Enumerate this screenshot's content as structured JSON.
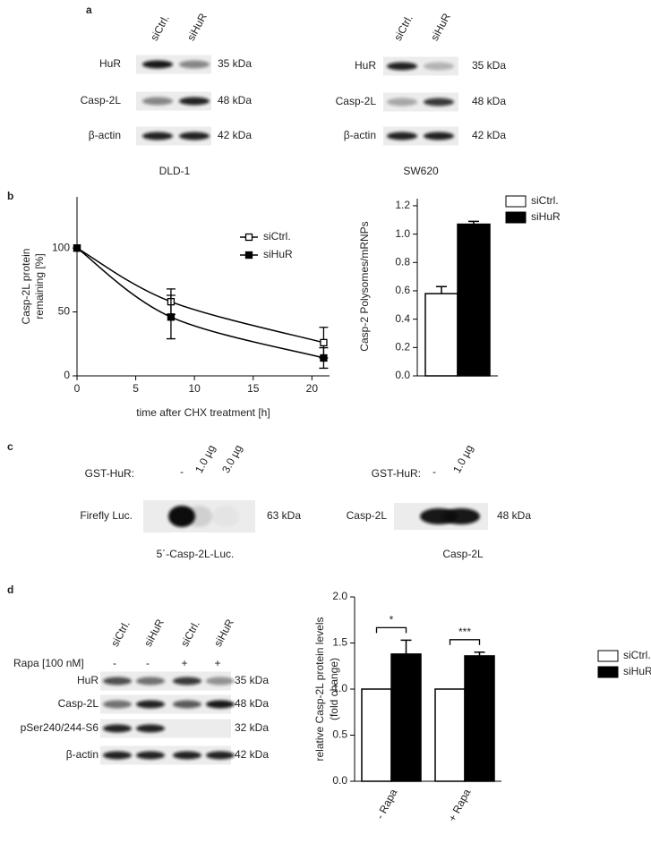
{
  "panel_a": {
    "label": "a",
    "blots": [
      {
        "lanes": [
          "siCtrl.",
          "siHuR"
        ],
        "rows": [
          {
            "protein": "HuR",
            "size": "35 kDa"
          },
          {
            "protein": "Casp-2L",
            "size": "48 kDa"
          },
          {
            "protein": "β-actin",
            "size": "42 kDa"
          }
        ],
        "cell_line": "DLD-1"
      },
      {
        "lanes": [
          "siCtrl.",
          "siHuR"
        ],
        "rows": [
          {
            "protein": "HuR",
            "size": "35 kDa"
          },
          {
            "protein": "Casp-2L",
            "size": "48 kDa"
          },
          {
            "protein": "β-actin",
            "size": "42 kDa"
          }
        ],
        "cell_line": "SW620"
      }
    ]
  },
  "panel_b": {
    "label": "b"
  },
  "panel_c": {
    "label": "c",
    "blots": [
      {
        "treatment": "GST-HuR:",
        "lanes": [
          "-",
          "1.0 µg",
          "3.0 µg"
        ],
        "rows": [
          {
            "protein": "Firefly Luc.",
            "size": "63 kDa"
          }
        ],
        "caption": "5´-Casp-2L-Luc."
      },
      {
        "treatment": "GST-HuR:",
        "lanes": [
          "-",
          "1.0 µg"
        ],
        "rows": [
          {
            "protein": "Casp-2L",
            "size": "48 kDa"
          }
        ],
        "caption": "Casp-2L"
      }
    ]
  },
  "panel_d": {
    "label": "d",
    "blot": {
      "lanes": [
        "siCtrl.",
        "siHuR",
        "siCtrl.",
        "siHuR"
      ],
      "treatment": "Rapa [100 nM]",
      "treatment_marks": [
        "-",
        "-",
        "+",
        "+"
      ],
      "rows": [
        {
          "protein": "HuR",
          "size": "35 kDa"
        },
        {
          "protein": "Casp-2L",
          "size": "48 kDa"
        },
        {
          "protein": "pSer240/244-S6",
          "size": "32 kDa"
        },
        {
          "protein": "β-actin",
          "size": "42 kDa"
        }
      ]
    }
  },
  "chart_data": [
    {
      "type": "line",
      "xlabel": "time after CHX treatment [h]",
      "ylabel": [
        "Casp-2L protein",
        "remaining [%]"
      ],
      "x": [
        0,
        8,
        21
      ],
      "xlim": [
        0,
        21.5
      ],
      "xticks": [
        0,
        5,
        10,
        15,
        20
      ],
      "ylim": [
        0,
        140
      ],
      "yticks": [
        0,
        50,
        100
      ],
      "series": [
        {
          "name": "siCtrl.",
          "color": "#000000",
          "marker": "square-open",
          "values": [
            100,
            58,
            26
          ],
          "errors": [
            null,
            10,
            12
          ]
        },
        {
          "name": "siHuR",
          "color": "#000000",
          "marker": "square",
          "values": [
            100,
            46,
            14
          ],
          "errors": [
            null,
            17,
            8
          ]
        }
      ]
    },
    {
      "type": "bar",
      "ylabel": [
        "Casp-2 Polysomes/mRNPs"
      ],
      "categories": [
        null
      ],
      "ylim": [
        0,
        1.25
      ],
      "yticks": [
        {
          "value": 0,
          "label": "0.0"
        },
        0.2,
        0.4,
        0.6,
        0.8,
        {
          "value": 1,
          "label": "1.0"
        },
        1.2
      ],
      "series": [
        {
          "name": "siCtrl.",
          "color": "#ffffff",
          "values": [
            0.58
          ],
          "errors": [
            0.05
          ]
        },
        {
          "name": "siHuR",
          "color": "#000000",
          "values": [
            1.07
          ],
          "errors": [
            0.02
          ]
        }
      ]
    },
    {
      "type": "bar",
      "ylabel": [
        "relative Casp-2L protein levels",
        "(fold change)"
      ],
      "categories": [
        "- Rapa",
        "+ Rapa"
      ],
      "ylim": [
        0,
        2
      ],
      "yticks": [
        {
          "value": 0,
          "label": "0.0"
        },
        0.5,
        {
          "value": 1,
          "label": "1.0"
        },
        1.5,
        {
          "value": 2,
          "label": "2.0"
        }
      ],
      "significance": [
        "*",
        "***"
      ],
      "series": [
        {
          "name": "siCtrl.",
          "color": "#ffffff",
          "values": [
            1.0,
            1.0
          ],
          "errors": [
            null,
            null
          ]
        },
        {
          "name": "siHuR",
          "color": "#000000",
          "values": [
            1.38,
            1.36
          ],
          "errors": [
            0.15,
            0.04
          ]
        }
      ]
    }
  ]
}
